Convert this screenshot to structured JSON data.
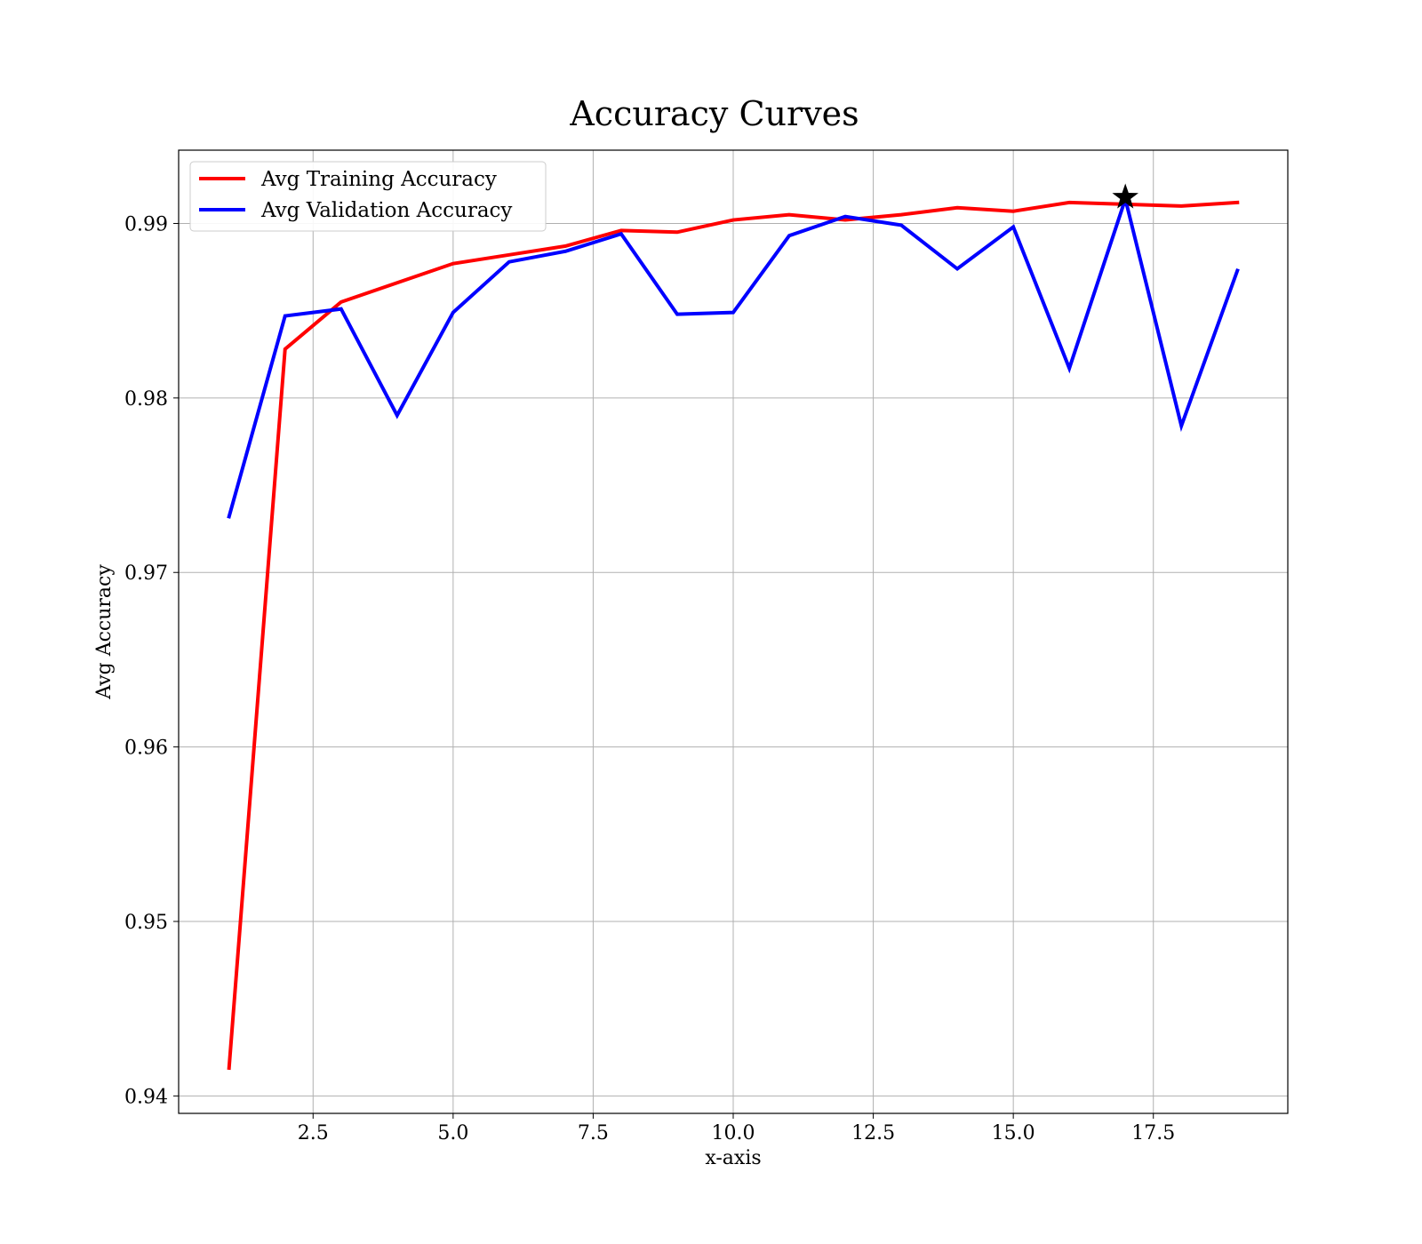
{
  "chart_data": {
    "type": "line",
    "title": "Accuracy Curves",
    "xlabel": "x-axis",
    "ylabel": "Avg Accuracy",
    "xlim": [
      0.1,
      19.9
    ],
    "ylim": [
      0.939,
      0.9942
    ],
    "xticks": [
      2.5,
      5.0,
      7.5,
      10.0,
      12.5,
      15.0,
      17.5
    ],
    "xtick_labels": [
      "2.5",
      "5.0",
      "7.5",
      "10.0",
      "12.5",
      "15.0",
      "17.5"
    ],
    "yticks": [
      0.94,
      0.95,
      0.96,
      0.97,
      0.98,
      0.99
    ],
    "ytick_labels": [
      "0.94",
      "0.95",
      "0.96",
      "0.97",
      "0.98",
      "0.99"
    ],
    "grid": true,
    "legend_position": "top-left",
    "x": [
      1,
      2,
      3,
      4,
      5,
      6,
      7,
      8,
      9,
      10,
      11,
      12,
      13,
      14,
      15,
      16,
      17,
      18,
      19
    ],
    "series": [
      {
        "name": "Avg Training Accuracy",
        "color": "#ff0000",
        "values": [
          0.9416,
          0.9828,
          0.9855,
          0.9866,
          0.9877,
          0.9882,
          0.9887,
          0.9896,
          0.9895,
          0.9902,
          0.9905,
          0.9902,
          0.9905,
          0.9909,
          0.9907,
          0.9912,
          0.9911,
          0.991,
          0.9912
        ]
      },
      {
        "name": "Avg Validation Accuracy",
        "color": "#0000ff",
        "values": [
          0.9732,
          0.9847,
          0.9851,
          0.979,
          0.9849,
          0.9878,
          0.9884,
          0.9894,
          0.9848,
          0.9849,
          0.9893,
          0.9904,
          0.9899,
          0.9874,
          0.9898,
          0.9817,
          0.9914,
          0.9784,
          0.9873
        ]
      }
    ],
    "marker": {
      "symbol": "star-icon",
      "x": 17,
      "y": 0.9915,
      "color": "#000000"
    }
  }
}
